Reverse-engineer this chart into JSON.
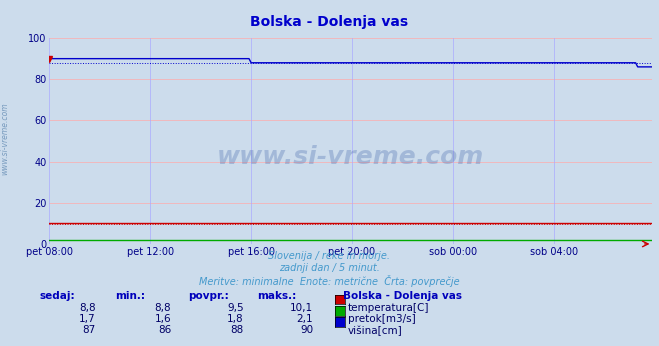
{
  "title": "Bolska - Dolenja vas",
  "title_color": "#0000cc",
  "fig_bg_color": "#ccdcec",
  "plot_bg_color": "#ccdcec",
  "xlim": [
    0,
    287
  ],
  "ylim": [
    0,
    100
  ],
  "yticks": [
    0,
    20,
    40,
    60,
    80,
    100
  ],
  "xtick_labels": [
    "pet 08:00",
    "pet 12:00",
    "pet 16:00",
    "pet 20:00",
    "sob 00:00",
    "sob 04:00"
  ],
  "xtick_positions": [
    0,
    48,
    96,
    144,
    192,
    240
  ],
  "grid_color_h": "#ffaaaa",
  "grid_color_v": "#aaaaff",
  "watermark": "www.si-vreme.com",
  "watermark_color": "#4466aa",
  "watermark_alpha": 0.3,
  "subtitle1": "Slovenija / reke in morje.",
  "subtitle2": "zadnji dan / 5 minut.",
  "subtitle3": "Meritve: minimalne  Enote: metrične  Črta: povprečje",
  "subtitle_color": "#4499cc",
  "table_header_color": "#0000bb",
  "table_data_color": "#000066",
  "series": [
    {
      "label": "temperatura[C]",
      "color": "#cc0000",
      "sedaj": "8,8",
      "min": "8,8",
      "povpr": "9,5",
      "maks": "10,1",
      "avg_scaled": 9.5,
      "flat_value": 10.1,
      "step_x": 96,
      "step_y_before": 10.1,
      "step_y_after": 10.1,
      "end_dip": false
    },
    {
      "label": "pretok[m3/s]",
      "color": "#00aa00",
      "sedaj": "1,7",
      "min": "1,6",
      "povpr": "1,8",
      "maks": "2,1",
      "avg_scaled": 1.8,
      "flat_value": 2.1,
      "step_x": 96,
      "step_y_before": 2.1,
      "step_y_after": 2.1,
      "end_dip": false
    },
    {
      "label": "višina[cm]",
      "color": "#0000cc",
      "sedaj": "87",
      "min": "86",
      "povpr": "88",
      "maks": "90",
      "avg_scaled": 88.0,
      "flat_value": 88.0,
      "step_x": 96,
      "step_y_before": 90.0,
      "step_y_after": 88.0,
      "end_dip": true,
      "end_dip_x": 280,
      "end_dip_y": 86.0
    }
  ],
  "sidebar_text": "www.si-vreme.com",
  "sidebar_color": "#336699",
  "n_points": 288,
  "table_headers": [
    "sedaj:",
    "min.:",
    "povpr.:",
    "maks.:"
  ],
  "table_station": "Bolska - Dolenja vas"
}
